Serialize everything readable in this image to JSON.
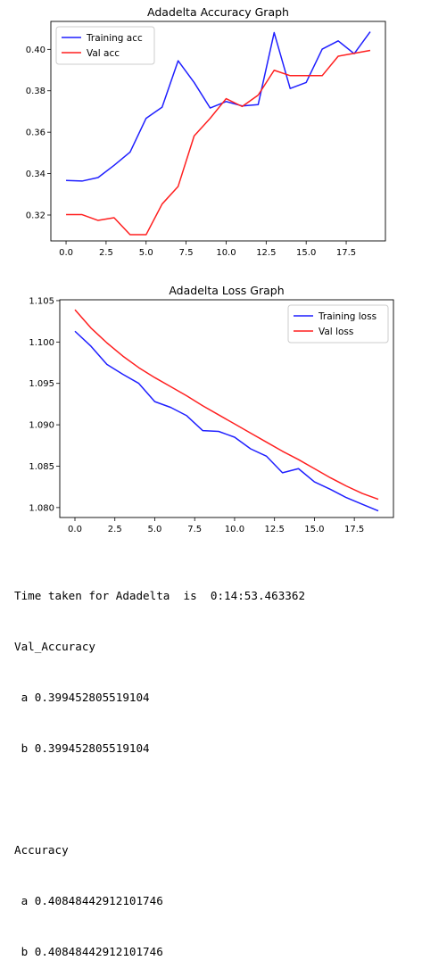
{
  "chart_data": [
    {
      "type": "line",
      "title": "Adadelta Accuracy Graph",
      "xlabel": "",
      "ylabel": "",
      "xlim": [
        -0.95,
        19.95
      ],
      "ylim": [
        0.3075,
        0.4135
      ],
      "xticks": [
        "0.0",
        "2.5",
        "5.0",
        "7.5",
        "10.0",
        "12.5",
        "15.0",
        "17.5"
      ],
      "yticks": [
        "0.32",
        "0.34",
        "0.36",
        "0.38",
        "0.40"
      ],
      "legend": "upper-left",
      "grid": false,
      "x": [
        0,
        1,
        2,
        3,
        4,
        5,
        6,
        7,
        8,
        9,
        10,
        11,
        12,
        13,
        14,
        15,
        16,
        17,
        18,
        19
      ],
      "series": [
        {
          "name": "Training acc",
          "color": "#1f1fff",
          "values": [
            0.3367,
            0.3364,
            0.3381,
            0.344,
            0.3504,
            0.3667,
            0.3721,
            0.3945,
            0.384,
            0.3717,
            0.3748,
            0.3727,
            0.3733,
            0.4081,
            0.3811,
            0.384,
            0.4001,
            0.4041,
            0.3979,
            0.4085
          ]
        },
        {
          "name": "Val acc",
          "color": "#ff1f1f",
          "values": [
            0.3202,
            0.3202,
            0.3174,
            0.3187,
            0.3105,
            0.3105,
            0.3253,
            0.3338,
            0.3582,
            0.3667,
            0.3762,
            0.3724,
            0.3779,
            0.3899,
            0.3873,
            0.3873,
            0.3873,
            0.3967,
            0.3981,
            0.3995
          ]
        }
      ]
    },
    {
      "type": "line",
      "title": "Adadelta Loss Graph",
      "xlabel": "",
      "ylabel": "",
      "xlim": [
        -0.95,
        19.95
      ],
      "ylim": [
        1.0788,
        1.1051
      ],
      "xticks": [
        "0.0",
        "2.5",
        "5.0",
        "7.5",
        "10.0",
        "12.5",
        "15.0",
        "17.5"
      ],
      "yticks": [
        "1.080",
        "1.085",
        "1.090",
        "1.095",
        "1.100",
        "1.105"
      ],
      "legend": "upper-right",
      "grid": false,
      "x": [
        0,
        1,
        2,
        3,
        4,
        5,
        6,
        7,
        8,
        9,
        10,
        11,
        12,
        13,
        14,
        15,
        16,
        17,
        18,
        19
      ],
      "series": [
        {
          "name": "Training loss",
          "color": "#1f1fff",
          "values": [
            1.1013,
            1.0995,
            1.0973,
            1.0961,
            1.095,
            1.0928,
            1.0921,
            1.0911,
            1.0893,
            1.0892,
            1.0885,
            1.0871,
            1.0862,
            1.0842,
            1.0847,
            1.0831,
            1.0822,
            1.0812,
            1.0804,
            1.0796
          ]
        },
        {
          "name": "Val loss",
          "color": "#ff1f1f",
          "values": [
            1.1039,
            1.1017,
            1.0999,
            1.0983,
            1.0969,
            1.0957,
            1.0946,
            1.0935,
            1.0923,
            1.0912,
            1.0901,
            1.089,
            1.0879,
            1.0868,
            1.0858,
            1.0847,
            1.0836,
            1.0826,
            1.0817,
            1.081
          ]
        }
      ]
    }
  ],
  "console": {
    "line1": "Time taken for Adadelta  is  0:14:53.463362",
    "line2": "Val_Accuracy",
    "line3": " a 0.399452805519104",
    "line4": " b 0.399452805519104",
    "line5": "",
    "line6": "Accuracy",
    "line7": " a 0.40848442912101746",
    "line8": " b 0.40848442912101746"
  }
}
